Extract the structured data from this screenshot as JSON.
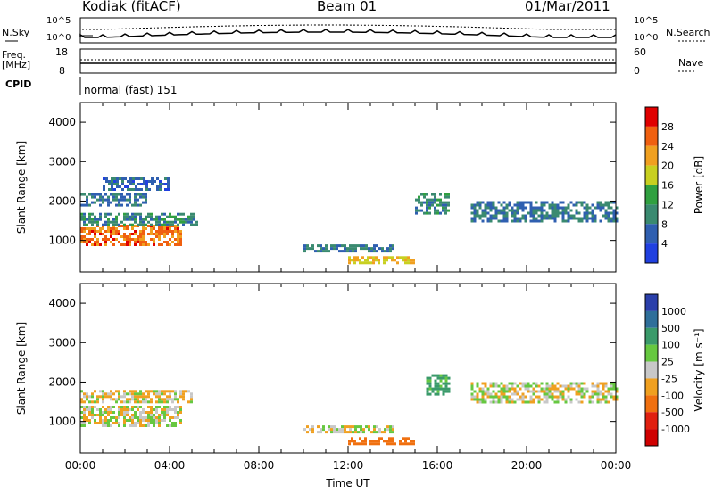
{
  "header": {
    "station": "Kodiak (fitACF)",
    "beam": "Beam 01",
    "date": "01/Mar/2011"
  },
  "top_panels": {
    "nsky_label": "N.Sky",
    "nsearch_label": "N.Search",
    "noise_ticks": [
      "10^5",
      "10^0"
    ],
    "freq_label_1": "Freq.",
    "freq_label_2": "[MHz]",
    "freq_ticks": [
      "18",
      "8"
    ],
    "nave_label": "Nave",
    "nave_ticks": [
      "60",
      "0"
    ],
    "cpid_label": "CPID",
    "cpid_value": "normal (fast) 151"
  },
  "colors": {
    "power": [
      "#2040e0",
      "#2f5fb0",
      "#3a8a70",
      "#30a040",
      "#c8d020",
      "#f0a020",
      "#f06010",
      "#e00000"
    ],
    "velocity": [
      "#2a3faa",
      "#2f6f9a",
      "#3a9a6a",
      "#66c840",
      "#c8c8c8",
      "#f0a020",
      "#f07010",
      "#e02010",
      "#d00000"
    ]
  },
  "chart_data": [
    {
      "type": "heatmap",
      "title": "Power",
      "ylabel": "Slant Range [km]",
      "ylim": [
        200,
        4500
      ],
      "xlim": [
        0,
        24
      ],
      "yticks": [
        "1000",
        "2000",
        "3000",
        "4000"
      ],
      "colorbar_label": "Power [dB]",
      "colorbar_ticks": [
        "4",
        "8",
        "12",
        "16",
        "20",
        "24",
        "28"
      ],
      "regions": [
        {
          "t": [
            0,
            4.5
          ],
          "r": [
            900,
            1400
          ],
          "v": 27
        },
        {
          "t": [
            0,
            5.2
          ],
          "r": [
            1400,
            1700
          ],
          "v": 12
        },
        {
          "t": [
            0,
            3
          ],
          "r": [
            1900,
            2200
          ],
          "v": 10
        },
        {
          "t": [
            1,
            4
          ],
          "r": [
            2300,
            2600
          ],
          "v": 8
        },
        {
          "t": [
            10,
            14
          ],
          "r": [
            700,
            900
          ],
          "v": 10
        },
        {
          "t": [
            12,
            15
          ],
          "r": [
            400,
            600
          ],
          "v": 22
        },
        {
          "t": [
            15,
            16.5
          ],
          "r": [
            1700,
            2200
          ],
          "v": 12
        },
        {
          "t": [
            17.5,
            24
          ],
          "r": [
            1500,
            2000
          ],
          "v": 10
        }
      ]
    },
    {
      "type": "heatmap",
      "title": "Velocity",
      "ylabel": "Slant Range [km]",
      "xlabel": "Time UT",
      "ylim": [
        200,
        4500
      ],
      "xlim": [
        0,
        24
      ],
      "yticks": [
        "1000",
        "2000",
        "3000",
        "4000"
      ],
      "xticks": [
        "00:00",
        "04:00",
        "08:00",
        "12:00",
        "16:00",
        "20:00",
        "00:00"
      ],
      "colorbar_label": "Velocity [m s⁻¹]",
      "colorbar_ticks": [
        "1000",
        "500",
        "100",
        "25",
        "-25",
        "-100",
        "-500",
        "-1000"
      ],
      "regions": [
        {
          "t": [
            0,
            4.5
          ],
          "r": [
            900,
            1400
          ],
          "v": 0
        },
        {
          "t": [
            0,
            5
          ],
          "r": [
            1500,
            1800
          ],
          "v": 0
        },
        {
          "t": [
            10,
            14
          ],
          "r": [
            700,
            900
          ],
          "v": 0
        },
        {
          "t": [
            12,
            15
          ],
          "r": [
            400,
            600
          ],
          "v": -200
        },
        {
          "t": [
            15.5,
            16.5
          ],
          "r": [
            1700,
            2200
          ],
          "v": 150
        },
        {
          "t": [
            17.5,
            24
          ],
          "r": [
            1500,
            2000
          ],
          "v": 0
        }
      ]
    }
  ]
}
